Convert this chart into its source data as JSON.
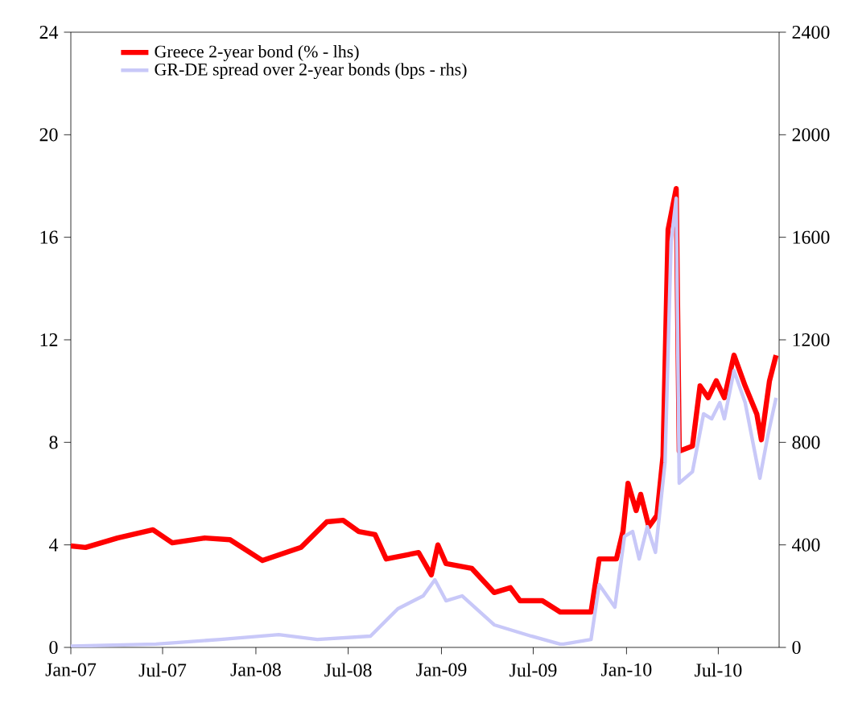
{
  "chart_data": {
    "type": "line",
    "legend": "top left",
    "xlim": [
      "2007-01-01",
      "2010-10-29"
    ],
    "xticks": [
      {
        "value": "2007-01-01",
        "label": "Jan-07"
      },
      {
        "value": "2007-07-01",
        "label": "Jul-07"
      },
      {
        "value": "2008-01-01",
        "label": "Jan-08"
      },
      {
        "value": "2008-07-01",
        "label": "Jul-08"
      },
      {
        "value": "2009-01-01",
        "label": "Jan-09"
      },
      {
        "value": "2009-07-01",
        "label": "Jul-09"
      },
      {
        "value": "2010-01-01",
        "label": "Jan-10"
      },
      {
        "value": "2010-07-01",
        "label": "Jul-10"
      }
    ],
    "ylim": [
      0,
      24
    ],
    "yticks": [
      0,
      4,
      8,
      12,
      16,
      20,
      24
    ],
    "y2lim": [
      0,
      2400
    ],
    "y2ticks": [
      0,
      400,
      800,
      1200,
      1600,
      2000,
      2400
    ],
    "series": [
      {
        "name": "Greece 2-year bond (% - lhs)",
        "color": "#ff0000",
        "x": [
          "2007-01-01",
          "2007-01-30",
          "2007-04-03",
          "2007-06-12",
          "2007-07-20",
          "2007-09-22",
          "2007-11-11",
          "2008-01-14",
          "2008-03-30",
          "2008-05-20",
          "2008-06-21",
          "2008-07-22",
          "2008-08-23",
          "2008-09-14",
          "2008-11-17",
          "2008-12-12",
          "2008-12-25",
          "2009-01-10",
          "2009-03-02",
          "2009-04-15",
          "2009-05-17",
          "2009-06-05",
          "2009-07-19",
          "2009-08-23",
          "2009-08-30",
          "2009-10-23",
          "2009-11-08",
          "2009-12-12",
          "2009-12-25",
          "2010-01-04",
          "2010-01-20",
          "2010-01-29",
          "2010-02-14",
          "2010-03-02",
          "2010-03-14",
          "2010-03-24",
          "2010-04-09",
          "2010-04-15",
          "2010-05-11",
          "2010-05-26",
          "2010-06-11",
          "2010-06-27",
          "2010-07-13",
          "2010-08-01",
          "2010-08-23",
          "2010-09-15",
          "2010-09-24",
          "2010-10-10",
          "2010-10-23"
        ],
        "values": [
          3.96,
          3.9,
          4.27,
          4.59,
          4.08,
          4.27,
          4.2,
          3.39,
          3.9,
          4.9,
          4.96,
          4.52,
          4.4,
          3.45,
          3.7,
          2.83,
          4.0,
          3.27,
          3.08,
          2.14,
          2.33,
          1.82,
          1.82,
          1.38,
          1.38,
          1.38,
          3.45,
          3.45,
          4.52,
          6.4,
          5.34,
          5.97,
          4.71,
          5.15,
          7.47,
          16.3,
          17.9,
          7.66,
          7.85,
          10.2,
          9.74,
          10.4,
          9.74,
          11.4,
          10.2,
          9.1,
          8.1,
          10.4,
          11.4
        ]
      },
      {
        "name": "GR-DE spread over 2-year bonds (bps - rhs)",
        "color": "#c8c8f8",
        "axis": "y2",
        "x": [
          "2007-01-01",
          "2007-06-18",
          "2007-10-23",
          "2008-02-15",
          "2008-05-01",
          "2008-08-14",
          "2008-10-07",
          "2008-11-26",
          "2008-12-19",
          "2009-01-10",
          "2009-02-11",
          "2009-04-15",
          "2009-06-27",
          "2009-08-23",
          "2009-08-30",
          "2009-10-23",
          "2009-11-08",
          "2009-12-09",
          "2009-12-28",
          "2010-01-13",
          "2010-01-26",
          "2010-02-11",
          "2010-02-27",
          "2010-03-18",
          "2010-03-30",
          "2010-04-09",
          "2010-04-15",
          "2010-05-11",
          "2010-06-02",
          "2010-06-18",
          "2010-07-04",
          "2010-07-13",
          "2010-08-01",
          "2010-08-23",
          "2010-09-21",
          "2010-10-07",
          "2010-10-23"
        ],
        "values": [
          5,
          13,
          31,
          50,
          31,
          44,
          151,
          201,
          264,
          182,
          201,
          88,
          44,
          13,
          13,
          31,
          245,
          157,
          433,
          452,
          345,
          471,
          371,
          722,
          1583,
          1752,
          641,
          685,
          911,
          892,
          955,
          892,
          1080,
          955,
          660,
          829,
          974
        ]
      }
    ]
  }
}
